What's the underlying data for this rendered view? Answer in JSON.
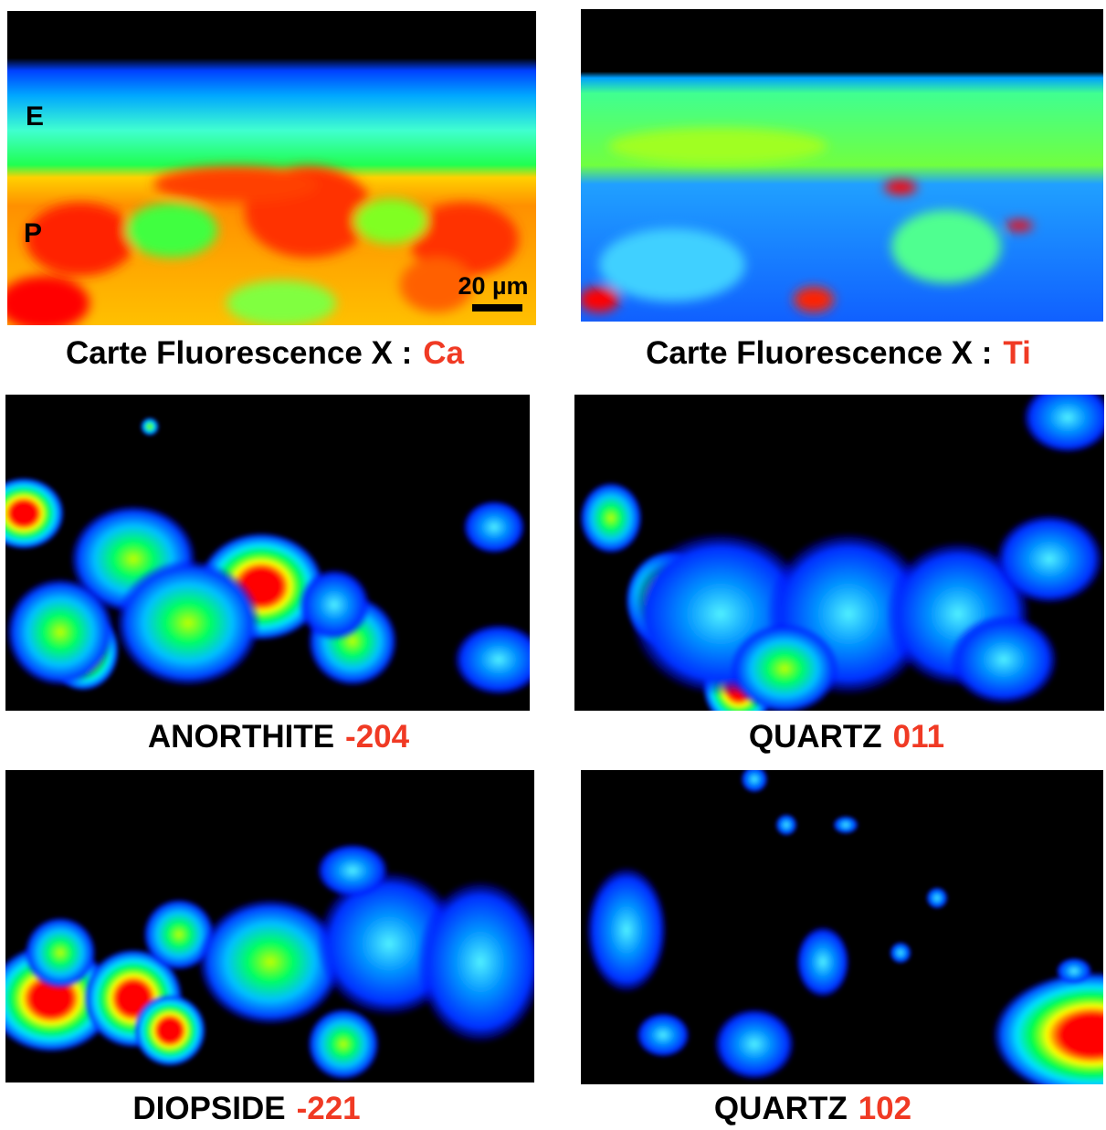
{
  "panels": [
    {
      "caption": {
        "text": "Carte Fluorescence X :",
        "highlight": "Ca"
      },
      "labels": [
        "E",
        "P"
      ],
      "scale_bar": "20 µm"
    },
    {
      "caption": {
        "text": "Carte Fluorescence X :",
        "highlight": "Ti"
      }
    },
    {
      "caption": {
        "text": "ANORTHITE",
        "highlight": "-204"
      }
    },
    {
      "caption": {
        "text": "QUARTZ",
        "highlight": "011"
      }
    },
    {
      "caption": {
        "text": "DIOPSIDE",
        "highlight": "-221"
      }
    },
    {
      "caption": {
        "text": "QUARTZ",
        "highlight": "102"
      }
    }
  ]
}
